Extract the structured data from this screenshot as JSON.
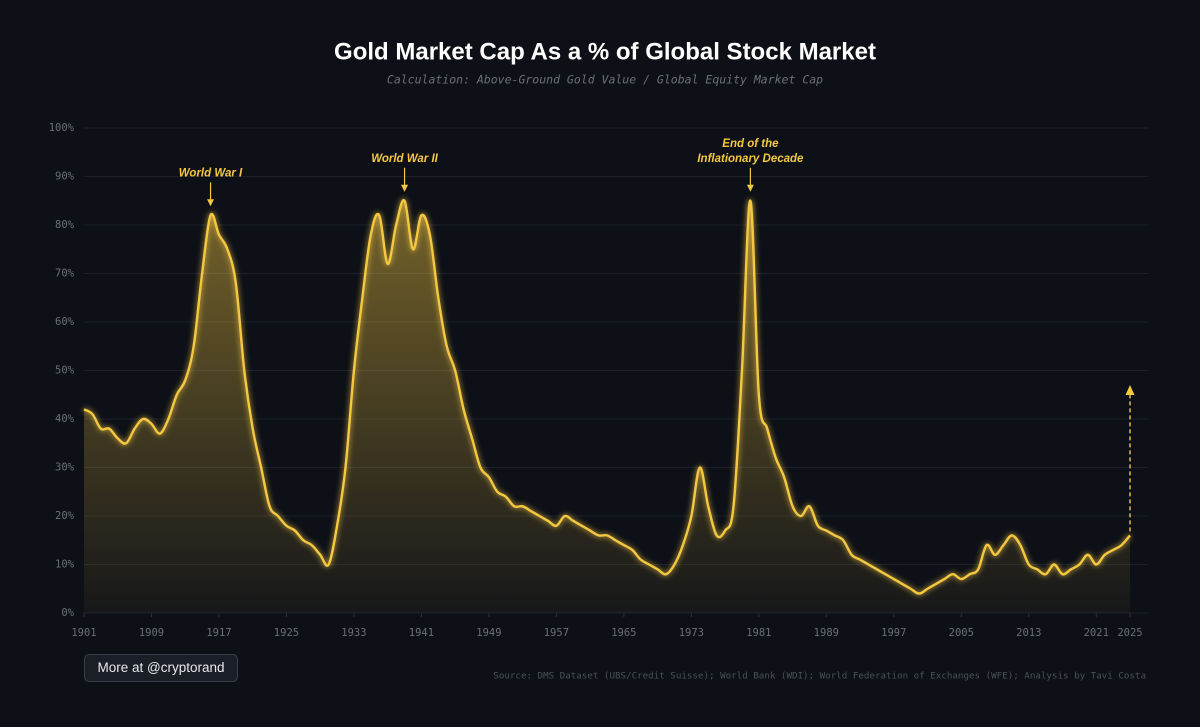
{
  "chart_data": {
    "type": "area",
    "title": "Gold Market Cap As a % of Global Stock Market",
    "subtitle": "Calculation: Above-Ground Gold Value / Global Equity Market Cap",
    "source": "Source: DMS Dataset (UBS/Credit Suisse); World Bank (WDI); World Federation of Exchanges (WFE); Analysis by Tavi Costa",
    "button": "More at @cryptorand",
    "color": "#f5c842",
    "grid": true,
    "x": [
      1901,
      1902,
      1903,
      1904,
      1905,
      1906,
      1907,
      1908,
      1909,
      1910,
      1911,
      1912,
      1913,
      1914,
      1915,
      1916,
      1917,
      1918,
      1919,
      1920,
      1921,
      1922,
      1923,
      1924,
      1925,
      1926,
      1927,
      1928,
      1929,
      1930,
      1931,
      1932,
      1933,
      1934,
      1935,
      1936,
      1937,
      1938,
      1939,
      1940,
      1941,
      1942,
      1943,
      1944,
      1945,
      1946,
      1947,
      1948,
      1949,
      1950,
      1951,
      1952,
      1953,
      1954,
      1955,
      1956,
      1957,
      1958,
      1959,
      1960,
      1961,
      1962,
      1963,
      1964,
      1965,
      1966,
      1967,
      1968,
      1969,
      1970,
      1971,
      1972,
      1973,
      1974,
      1975,
      1976,
      1977,
      1978,
      1979,
      1980,
      1981,
      1982,
      1983,
      1984,
      1985,
      1986,
      1987,
      1988,
      1989,
      1990,
      1991,
      1992,
      1993,
      1994,
      1995,
      1996,
      1997,
      1998,
      1999,
      2000,
      2001,
      2002,
      2003,
      2004,
      2005,
      2006,
      2007,
      2008,
      2009,
      2010,
      2011,
      2012,
      2013,
      2014,
      2015,
      2016,
      2017,
      2018,
      2019,
      2020,
      2021,
      2022,
      2023,
      2024,
      2025
    ],
    "values": [
      42,
      41,
      38,
      38,
      36,
      35,
      38,
      40,
      39,
      37,
      40,
      45,
      48,
      55,
      70,
      82,
      78,
      75,
      68,
      50,
      38,
      30,
      22,
      20,
      18,
      17,
      15,
      14,
      12,
      10,
      18,
      30,
      50,
      65,
      78,
      82,
      72,
      80,
      85,
      75,
      82,
      78,
      65,
      55,
      50,
      42,
      36,
      30,
      28,
      25,
      24,
      22,
      22,
      21,
      20,
      19,
      18,
      20,
      19,
      18,
      17,
      16,
      16,
      15,
      14,
      13,
      11,
      10,
      9,
      8,
      10,
      14,
      20,
      30,
      22,
      16,
      17,
      22,
      50,
      85,
      45,
      38,
      32,
      28,
      22,
      20,
      22,
      18,
      17,
      16,
      15,
      12,
      11,
      10,
      9,
      8,
      7,
      6,
      5,
      4,
      5,
      6,
      7,
      8,
      7,
      8,
      9,
      14,
      12,
      14,
      16,
      14,
      10,
      9,
      8,
      10,
      8,
      9,
      10,
      12,
      10,
      12,
      13,
      14,
      16
    ],
    "xlim": [
      1901,
      2025
    ],
    "xticks": [
      1901,
      1909,
      1917,
      1925,
      1933,
      1941,
      1949,
      1957,
      1965,
      1973,
      1981,
      1989,
      1997,
      2005,
      2013,
      2021,
      2025
    ],
    "ylim": [
      0,
      100
    ],
    "yticks": [
      {
        "value": 0,
        "label": "0%"
      },
      {
        "value": 10,
        "label": "10%"
      },
      {
        "value": 20,
        "label": "20%"
      },
      {
        "value": 30,
        "label": "30%"
      },
      {
        "value": 40,
        "label": "40%"
      },
      {
        "value": 50,
        "label": "50%"
      },
      {
        "value": 60,
        "label": "60%"
      },
      {
        "value": 70,
        "label": "70%"
      },
      {
        "value": 80,
        "label": "80%"
      },
      {
        "value": 90,
        "label": "90%"
      },
      {
        "value": 100,
        "label": "100%"
      }
    ],
    "annotations": [
      {
        "lines": [
          "World War I"
        ],
        "x": 1916
      },
      {
        "lines": [
          "World War II"
        ],
        "x": 1939
      },
      {
        "lines": [
          "End of the",
          "Inflationary Decade"
        ],
        "x": 1980
      }
    ],
    "upside_arrow": {
      "x": 2025,
      "to": 47
    }
  }
}
